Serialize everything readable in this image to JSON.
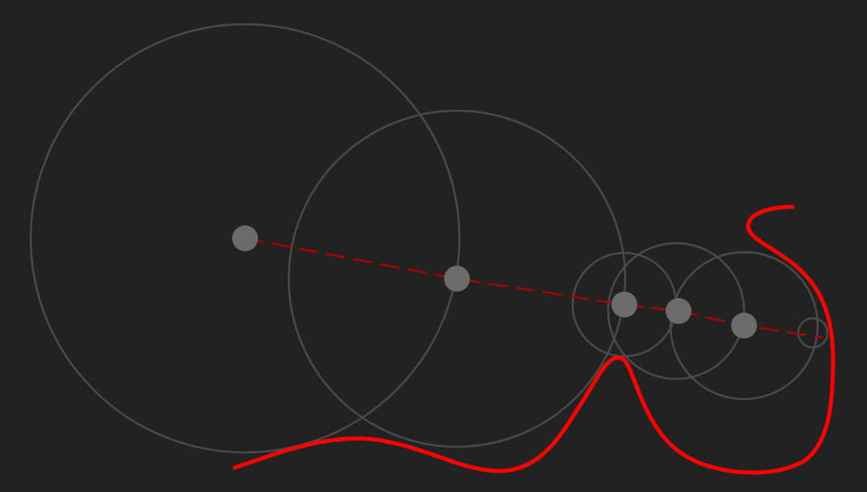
{
  "diagram": {
    "type": "epicycle-fourier-drawing",
    "background_color": "#222222",
    "circle_color": "#4a4a4a",
    "center_dot_color": "#6b6b6b",
    "chain_line_color": "#aa0000",
    "traced_path_color": "#ff0000",
    "chain_line_style": "dashed",
    "circle_count": 6
  }
}
